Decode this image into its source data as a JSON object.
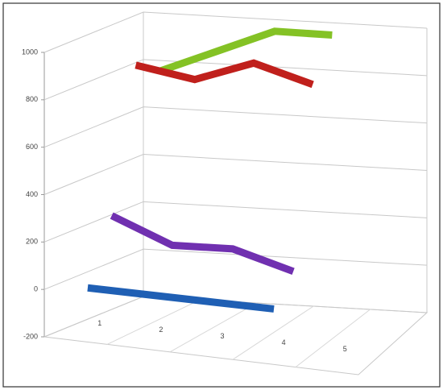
{
  "chart_data": {
    "type": "line3d",
    "categories": [
      "1",
      "2",
      "3",
      "4",
      "5"
    ],
    "series": [
      {
        "color": "#1f5fb4",
        "values": [
          0,
          0,
          0,
          0,
          null
        ]
      },
      {
        "color": "#7030b0",
        "values": [
          260,
          160,
          170,
          100,
          null
        ]
      },
      {
        "color": "#c0201c",
        "values": [
          850,
          810,
          900,
          830,
          null
        ]
      },
      {
        "color": "#84c225",
        "values": [
          780,
          880,
          980,
          980,
          null
        ]
      }
    ],
    "ylim": [
      -200,
      1000
    ],
    "yticks": [
      -200,
      0,
      200,
      400,
      600,
      800,
      1000
    ],
    "grid": true
  }
}
